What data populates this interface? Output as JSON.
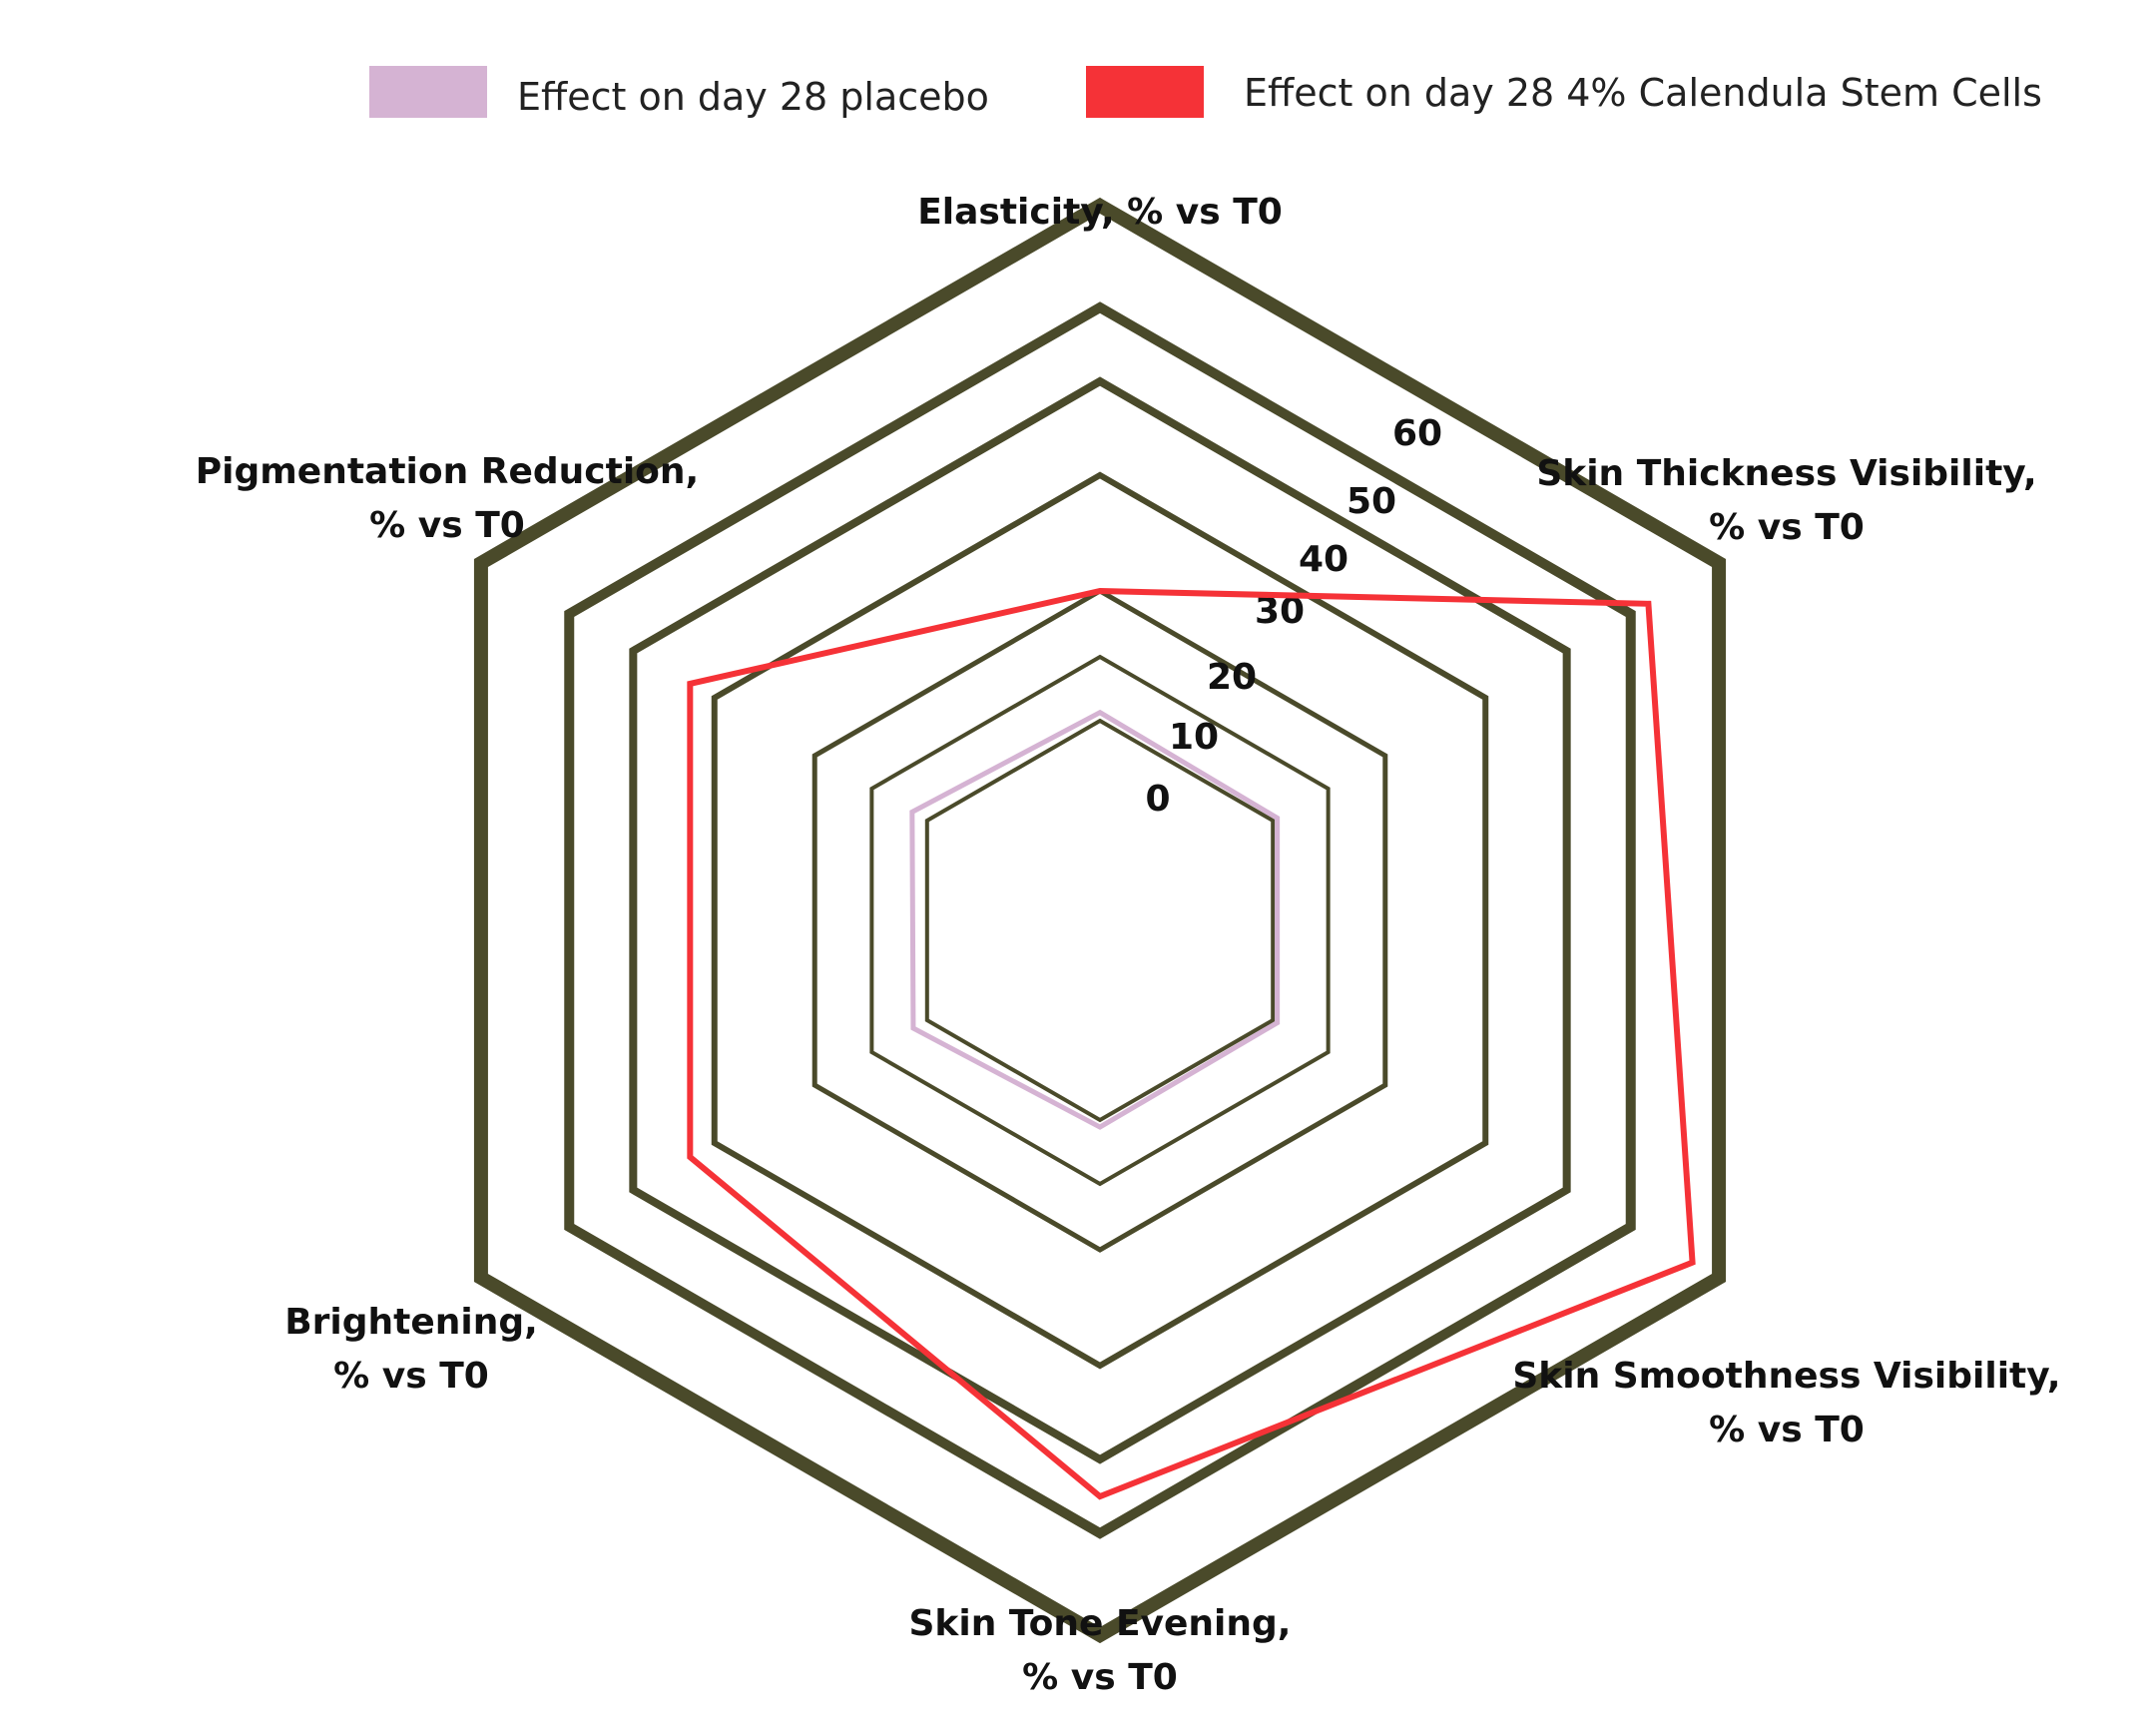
{
  "colors": {
    "grid": "#4a4a2a",
    "placebo": "#d5b3d3",
    "calendula": "#f53237",
    "text": "#111111"
  },
  "legend": {
    "placebo_label": "Effect on day 28 placebo",
    "calendula_label": "Effect on day 28 4% Calendula Stem Cells",
    "placement": "top"
  },
  "chart_data": {
    "type": "radar",
    "title": "",
    "categories": [
      [
        "Elasticity, % vs T0"
      ],
      [
        "Skin Thickness Visibility,",
        "% vs T0"
      ],
      [
        "Skin Smoothness Visibility,",
        "% vs T0"
      ],
      [
        "Skin Tone Evening,",
        "% vs T0"
      ],
      [
        "Brightening,",
        "% vs T0"
      ],
      [
        "Pigmentation Reduction,",
        "% vs T0"
      ]
    ],
    "ticks": [
      "0",
      "10",
      "20",
      "30",
      "40",
      "50",
      "60"
    ],
    "range": [
      0,
      60
    ],
    "series": [
      {
        "name": "Effect on day 28 placebo",
        "values": [
          1.3,
          0.8,
          0.8,
          1.1,
          2.5,
          2.7
        ]
      },
      {
        "name": "Effect on day 28 4% Calendula Stem Cells",
        "values": [
          20,
          52,
          57,
          45,
          33,
          33
        ]
      }
    ]
  }
}
